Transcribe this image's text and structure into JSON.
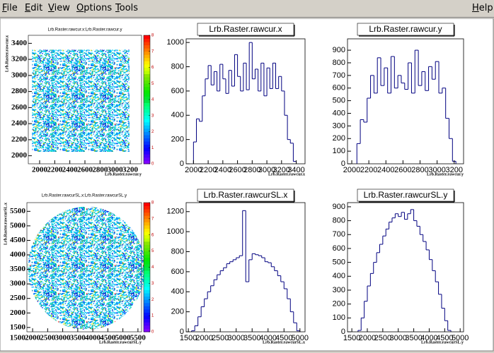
{
  "menu": [
    "File",
    "Edit",
    "View",
    "Options",
    "Tools"
  ],
  "help": "Help",
  "chart_data": [
    {
      "type": "hist2d",
      "title": "Lrb.Raster.rawcur.x:Lrb.Raster.rawcur.y",
      "x_label": "Lrb.Raster.rawcur.y",
      "y_label": "Lrb.Raster.rawcur.x",
      "xlim": [
        1850,
        3350
      ],
      "xticks": [
        2000,
        2200,
        2400,
        2600,
        2800,
        3000,
        3200
      ],
      "ylim": [
        1900,
        3500
      ],
      "yticks": [
        2000,
        2200,
        2400,
        2600,
        2800,
        3000,
        3200,
        3400
      ],
      "zlim": [
        0,
        8
      ],
      "zticks": [
        0,
        1,
        2,
        3,
        4,
        5,
        6,
        7,
        8
      ],
      "region": {
        "shape": "rectangle",
        "x": [
          1900,
          3190
        ],
        "y": [
          2050,
          3320
        ]
      }
    },
    {
      "type": "histogram",
      "title": "Lrb.Raster.rawcur.x",
      "x_label": "Lrb.Raster.rawcur.x",
      "color": "#000080",
      "xlim": [
        1900,
        3520
      ],
      "xticks": [
        2000,
        2200,
        2400,
        2600,
        2800,
        3000,
        3200,
        3400
      ],
      "ylim": [
        0,
        1030
      ],
      "yticks": [
        0,
        200,
        400,
        600,
        800,
        1000
      ],
      "bins": [
        2000,
        2040,
        2080,
        2120,
        2160,
        2200,
        2240,
        2280,
        2320,
        2360,
        2400,
        2440,
        2480,
        2520,
        2560,
        2600,
        2640,
        2680,
        2720,
        2760,
        2800,
        2840,
        2880,
        2920,
        2960,
        3000,
        3040,
        3080,
        3120,
        3160,
        3200,
        3240,
        3280,
        3320,
        3360,
        3400
      ],
      "values": [
        180,
        370,
        350,
        560,
        700,
        810,
        650,
        760,
        600,
        820,
        700,
        580,
        770,
        640,
        900,
        720,
        600,
        830,
        610,
        1000,
        700,
        780,
        600,
        830,
        560,
        790,
        620,
        830,
        620,
        720,
        600,
        400,
        200,
        170,
        20
      ]
    },
    {
      "type": "histogram",
      "title": "Lrb.Raster.rawcur.y",
      "x_label": "Lrb.Raster.rawcur.y",
      "color": "#000080",
      "xlim": [
        1950,
        3310
      ],
      "xticks": [
        2000,
        2200,
        2400,
        2600,
        2800,
        3000,
        3200
      ],
      "ylim": [
        0,
        990
      ],
      "yticks": [
        0,
        100,
        200,
        300,
        400,
        500,
        600,
        700,
        800,
        900
      ],
      "bins": [
        2060,
        2100,
        2140,
        2180,
        2220,
        2260,
        2300,
        2340,
        2380,
        2420,
        2460,
        2500,
        2540,
        2580,
        2620,
        2660,
        2700,
        2740,
        2780,
        2820,
        2860,
        2900,
        2940,
        2980,
        3020,
        3060,
        3100,
        3140,
        3180,
        3220
      ],
      "values": [
        160,
        350,
        330,
        520,
        700,
        560,
        840,
        620,
        760,
        560,
        850,
        600,
        700,
        640,
        590,
        800,
        560,
        900,
        620,
        730,
        580,
        770,
        670,
        810,
        560,
        600,
        360,
        200,
        20
      ]
    },
    {
      "type": "hist2d",
      "title": "Lrb.Raster.rawcurSL.x:Lrb.Raster.rawcurSL.y",
      "x_label": "Lrb.Raster.rawcurSL.y",
      "y_label": "Lrb.Raster.rawcurSL.x",
      "xlim": [
        1810,
        5620
      ],
      "xticks": [
        1500,
        2000,
        2500,
        3000,
        3500,
        4000,
        4500,
        5000,
        5500
      ],
      "ylim": [
        1350,
        5800
      ],
      "yticks": [
        1500,
        2000,
        2500,
        3000,
        3500,
        4000,
        4500,
        5000,
        5500
      ],
      "zlim": [
        0,
        8
      ],
      "zticks": [
        0,
        1,
        2,
        3,
        4,
        5,
        6,
        7,
        8
      ],
      "region": {
        "shape": "ellipse",
        "center": [
          3790,
          3540
        ],
        "radius": [
          1950,
          2120
        ]
      }
    },
    {
      "type": "histogram",
      "title": "Lrb.Raster.rawcurSL.x",
      "x_label": "Lrb.Raster.rawcurSL.x",
      "color": "#000080",
      "xlim": [
        1430,
        5160
      ],
      "xticks": [
        1500,
        2000,
        2500,
        3000,
        3500,
        4000,
        4500,
        5000
      ],
      "ylim": [
        0,
        1290
      ],
      "yticks": [
        0,
        200,
        400,
        600,
        800,
        1000,
        1200
      ],
      "bins": [
        1600,
        1700,
        1800,
        1900,
        2000,
        2100,
        2200,
        2300,
        2400,
        2500,
        2600,
        2700,
        2800,
        2900,
        3000,
        3100,
        3200,
        3300,
        3400,
        3500,
        3600,
        3700,
        3800,
        3900,
        4000,
        4100,
        4200,
        4300,
        4400,
        4500,
        4600,
        4700,
        4800,
        4900,
        5000
      ],
      "values": [
        10,
        60,
        150,
        250,
        330,
        400,
        460,
        520,
        570,
        610,
        640,
        680,
        700,
        720,
        740,
        760,
        1210,
        500,
        720,
        780,
        770,
        760,
        740,
        700,
        690,
        650,
        610,
        560,
        500,
        430,
        330,
        200,
        90,
        10
      ]
    },
    {
      "type": "histogram",
      "title": "Lrb.Raster.rawcurSL.y",
      "x_label": "Lrb.Raster.rawcurSL.y",
      "color": "#000080",
      "xlim": [
        1360,
        5110
      ],
      "xticks": [
        1500,
        2000,
        2500,
        3000,
        3500,
        4000,
        4500,
        5000
      ],
      "ylim": [
        0,
        930
      ],
      "yticks": [
        0,
        100,
        200,
        300,
        400,
        500,
        600,
        700,
        800,
        900
      ],
      "bins": [
        1700,
        1800,
        1900,
        2000,
        2100,
        2200,
        2300,
        2400,
        2500,
        2600,
        2700,
        2800,
        2900,
        3000,
        3100,
        3200,
        3300,
        3400,
        3500,
        3600,
        3700,
        3800,
        3900,
        4000,
        4100,
        4200,
        4300,
        4400,
        4500,
        4600,
        4700
      ],
      "values": [
        10,
        100,
        220,
        330,
        420,
        500,
        570,
        630,
        690,
        740,
        790,
        820,
        850,
        830,
        860,
        810,
        850,
        880,
        800,
        760,
        700,
        650,
        590,
        520,
        440,
        360,
        270,
        170,
        80,
        10
      ]
    }
  ]
}
